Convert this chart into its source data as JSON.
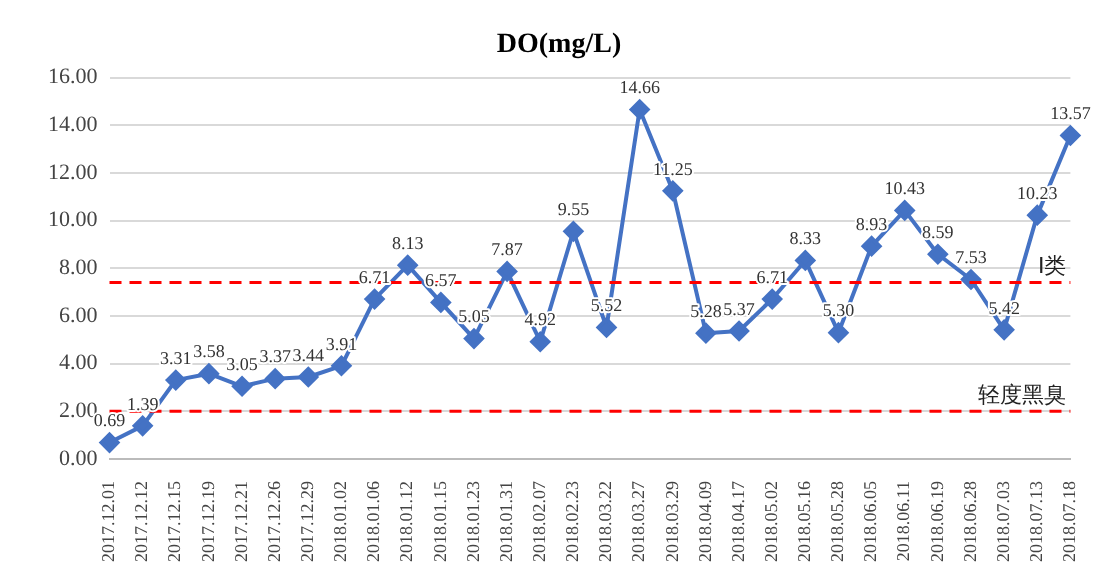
{
  "chart_data": {
    "type": "line",
    "title": "DO(mg/L)",
    "categories": [
      "2017.12.01",
      "2017.12.12",
      "2017.12.15",
      "2017.12.19",
      "2017.12.21",
      "2017.12.26",
      "2017.12.29",
      "2018.01.02",
      "2018.01.06",
      "2018.01.12",
      "2018.01.15",
      "2018.01.23",
      "2018.01.31",
      "2018.02.07",
      "2018.02.23",
      "2018.03.22",
      "2018.03.27",
      "2018.03.29",
      "2018.04.09",
      "2018.04.17",
      "2018.05.02",
      "2018.05.16",
      "2018.05.28",
      "2018.06.05",
      "2018.06.11",
      "2018.06.19",
      "2018.06.28",
      "2018.07.03",
      "2018.07.13",
      "2018.07.18"
    ],
    "series": [
      {
        "color": "#4472c4",
        "values": [
          0.69,
          1.39,
          3.31,
          3.58,
          3.05,
          3.37,
          3.44,
          3.91,
          6.71,
          8.13,
          6.57,
          5.05,
          7.87,
          4.92,
          9.55,
          5.52,
          14.66,
          11.25,
          5.28,
          5.37,
          6.71,
          8.33,
          5.3,
          8.93,
          10.43,
          8.59,
          7.53,
          5.42,
          10.23,
          13.57
        ]
      }
    ],
    "ylim": [
      0,
      16
    ],
    "yticks": [
      {
        "value": 0,
        "label": "0.00"
      },
      {
        "value": 2,
        "label": "2.00"
      },
      {
        "value": 4,
        "label": "4.00"
      },
      {
        "value": 6,
        "label": "6.00"
      },
      {
        "value": 8,
        "label": "8.00"
      },
      {
        "value": 10,
        "label": "10.00"
      },
      {
        "value": 12,
        "label": "12.00"
      },
      {
        "value": 14,
        "label": "14.00"
      },
      {
        "value": 16,
        "label": "16.00"
      }
    ],
    "ref_lines": [
      {
        "axis": "y",
        "value": 7.4,
        "label": "I类",
        "color": "#ff0000",
        "line_style": "dashed"
      },
      {
        "axis": "y",
        "value": 2,
        "label": "轻度黑臭",
        "color": "#ff0000",
        "line_style": "dashed"
      }
    ],
    "value_labels": [
      "0.69",
      "1.39",
      "3.31",
      "3.58",
      "3.05",
      "3.37",
      "3.44",
      "3.91",
      "6.71",
      "8.13",
      "6.57",
      "5.05",
      "7.87",
      "4.92",
      "9.55",
      "5.52",
      "14.66",
      "11.25",
      "5.28",
      "5.37",
      "6.71",
      "8.33",
      "5.30",
      "8.93",
      "10.43",
      "8.59",
      "7.53",
      "5.42",
      "10.23",
      "13.57"
    ],
    "grid": "y",
    "legend": false,
    "marker": "diamond",
    "line_style": "solid"
  }
}
